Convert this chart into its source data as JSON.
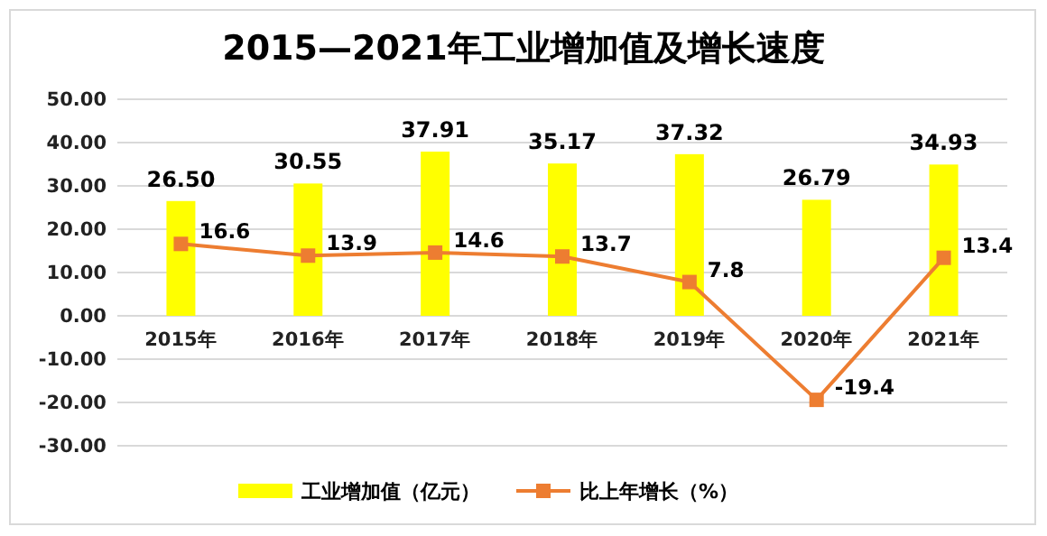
{
  "chart_data": {
    "type": "bar",
    "title": "2015—2021年工业增加值及增长速度",
    "categories": [
      "2015年",
      "2016年",
      "2017年",
      "2018年",
      "2019年",
      "2020年",
      "2021年"
    ],
    "series": [
      {
        "name": "工业增加值（亿元）",
        "color": "#ffff00",
        "values": [
          26.5,
          30.55,
          37.91,
          35.17,
          37.32,
          26.79,
          34.93
        ],
        "value_labels": [
          "26.50",
          "30.55",
          "37.91",
          "35.17",
          "37.32",
          "26.79",
          "34.93"
        ]
      },
      {
        "name": "比上年增长（%）",
        "type": "line",
        "color": "#ed7d31",
        "marker": "square",
        "values": [
          16.6,
          13.9,
          14.6,
          13.7,
          7.8,
          -19.4,
          13.4
        ]
      }
    ],
    "ylim": [
      -30,
      50
    ],
    "yticks": [
      {
        "value": -30,
        "label": "-30.00"
      },
      {
        "value": -20,
        "label": "-20.00"
      },
      {
        "value": -10,
        "label": "-10.00"
      },
      {
        "value": 0,
        "label": "0.00"
      },
      {
        "value": 10,
        "label": "10.00"
      },
      {
        "value": 20,
        "label": "20.00"
      },
      {
        "value": 30,
        "label": "30.00"
      },
      {
        "value": 40,
        "label": "40.00"
      },
      {
        "value": 50,
        "label": "50.00"
      }
    ],
    "grid": "y",
    "legend": "bottom",
    "data_labels": true
  }
}
